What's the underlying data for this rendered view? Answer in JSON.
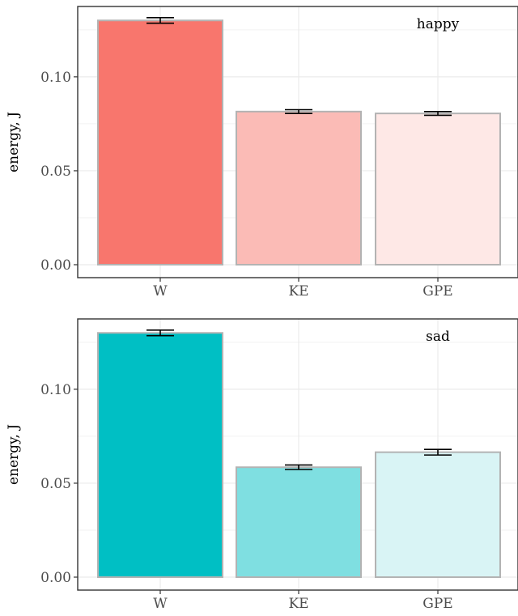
{
  "chart_data": [
    {
      "type": "bar",
      "panel_label": "happy",
      "categories": [
        "W",
        "KE",
        "GPE"
      ],
      "values": [
        0.13,
        0.0815,
        0.0805
      ],
      "error": [
        0.0015,
        0.001,
        0.001
      ],
      "colors": [
        "#f8766d",
        "#fbbbb6",
        "#fee8e6"
      ],
      "ylabel": "energy, J",
      "yticks": [
        0.0,
        0.05,
        0.1
      ],
      "ytick_labels": [
        "0.00",
        "0.05",
        "0.10"
      ],
      "ylim": [
        0,
        0.137
      ],
      "grid": true
    },
    {
      "type": "bar",
      "panel_label": "sad",
      "categories": [
        "W",
        "KE",
        "GPE"
      ],
      "values": [
        0.13,
        0.0585,
        0.0665
      ],
      "error": [
        0.0015,
        0.0012,
        0.0015
      ],
      "colors": [
        "#00bfc4",
        "#7fdfe1",
        "#d9f4f5"
      ],
      "ylabel": "energy, J",
      "yticks": [
        0.0,
        0.05,
        0.1
      ],
      "ytick_labels": [
        "0.00",
        "0.05",
        "0.10"
      ],
      "ylim": [
        0,
        0.137
      ],
      "grid": true
    }
  ]
}
